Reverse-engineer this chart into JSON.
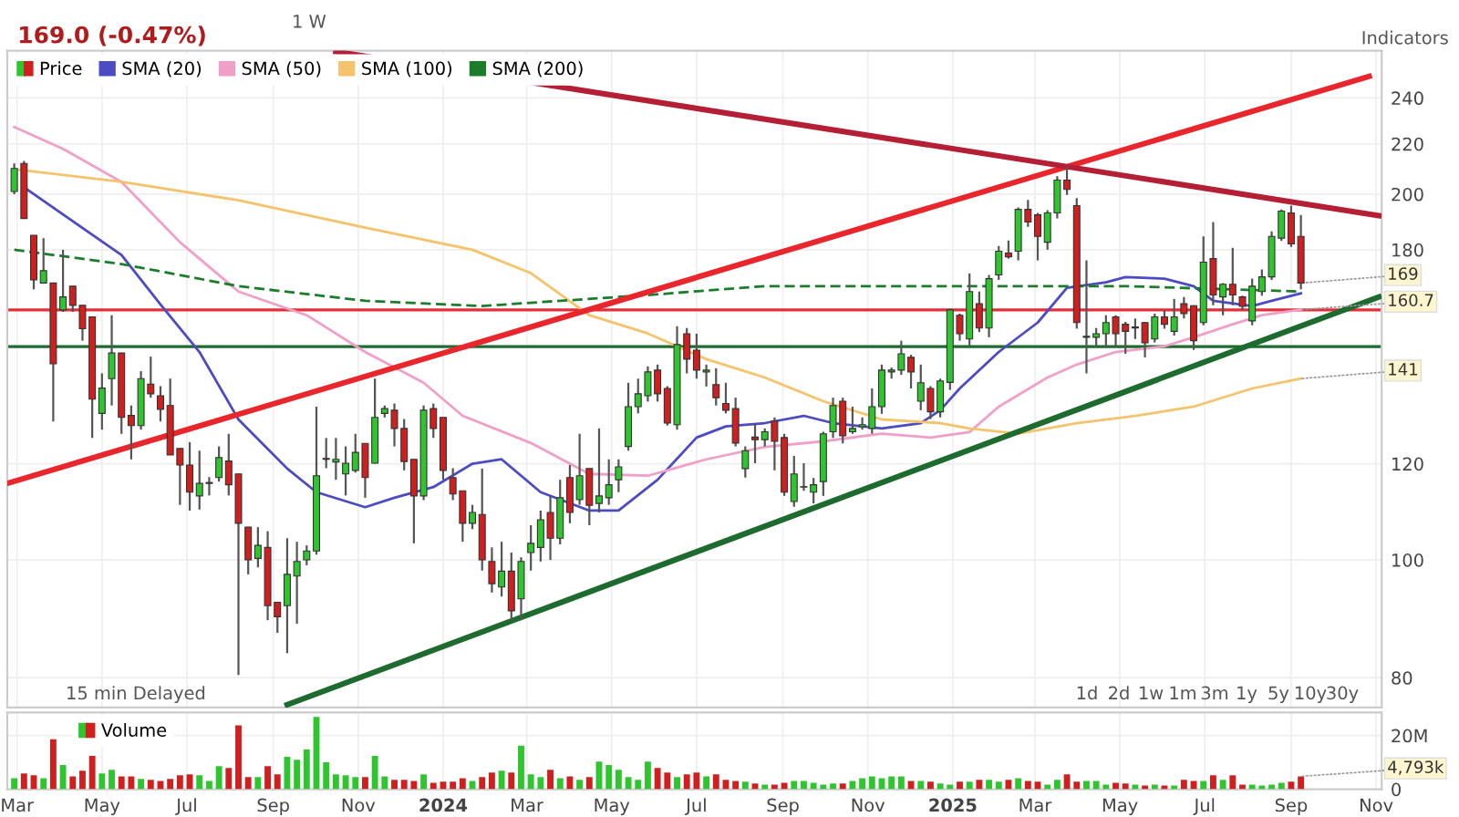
{
  "chart_data": [
    {
      "type": "candlestick",
      "title": "169.0 (-0.47%)",
      "x": [
        "2023-02-27",
        "2023-03-06",
        "2023-03-13",
        "2023-03-20",
        "2023-03-27",
        "2023-04-03",
        "2023-04-10",
        "2023-04-17",
        "2023-04-24",
        "2023-05-01",
        "2023-05-08",
        "2023-05-15",
        "2023-05-22",
        "2023-05-29",
        "2023-06-05",
        "2023-06-12",
        "2023-06-19",
        "2023-06-26",
        "2023-07-03",
        "2023-07-10",
        "2023-07-17",
        "2023-07-24",
        "2023-07-31",
        "2023-08-07",
        "2023-08-14",
        "2023-08-21",
        "2023-08-28",
        "2023-09-04",
        "2023-09-11",
        "2023-09-18",
        "2023-09-25",
        "2023-10-02",
        "2023-10-09",
        "2023-10-16",
        "2023-10-23",
        "2023-10-30",
        "2023-11-06",
        "2023-11-13",
        "2023-11-20",
        "2023-11-27",
        "2023-12-04",
        "2023-12-11",
        "2023-12-18",
        "2023-12-25",
        "2024-01-01",
        "2024-01-08",
        "2024-01-15",
        "2024-01-22",
        "2024-01-29",
        "2024-02-05",
        "2024-02-12",
        "2024-02-19",
        "2024-02-26",
        "2024-03-04",
        "2024-03-11",
        "2024-03-18",
        "2024-03-25",
        "2024-04-01",
        "2024-04-08",
        "2024-04-15",
        "2024-04-22",
        "2024-04-29",
        "2024-05-06",
        "2024-05-13",
        "2024-05-20",
        "2024-05-27",
        "2024-06-03",
        "2024-06-10",
        "2024-06-17",
        "2024-06-24",
        "2024-07-01",
        "2024-07-08",
        "2024-07-15",
        "2024-07-22",
        "2024-07-29",
        "2024-08-05",
        "2024-08-12",
        "2024-08-19",
        "2024-08-26",
        "2024-09-02",
        "2024-09-09",
        "2024-09-16",
        "2024-09-23",
        "2024-09-30",
        "2024-10-07",
        "2024-10-14",
        "2024-10-21",
        "2024-10-28",
        "2024-11-04",
        "2024-11-11",
        "2024-11-18",
        "2024-11-25",
        "2024-12-02",
        "2024-12-09",
        "2024-12-16",
        "2024-12-23",
        "2024-12-30",
        "2025-01-06",
        "2025-01-13",
        "2025-01-20",
        "2025-01-27",
        "2025-02-03",
        "2025-02-10",
        "2025-02-17",
        "2025-02-24",
        "2025-03-03",
        "2025-03-10",
        "2025-03-17",
        "2025-03-24",
        "2025-03-31",
        "2025-04-07",
        "2025-04-14",
        "2025-04-21",
        "2025-04-28",
        "2025-05-05",
        "2025-05-12",
        "2025-05-19",
        "2025-05-26",
        "2025-06-02",
        "2025-06-09",
        "2025-06-16",
        "2025-06-23",
        "2025-06-30",
        "2025-07-07",
        "2025-07-14",
        "2025-07-21",
        "2025-07-28",
        "2025-08-04",
        "2025-08-11",
        "2025-08-18",
        "2025-08-25",
        "2025-09-01",
        "2025-09-08"
      ],
      "series": [
        {
          "type": "candlestick",
          "name": "Price",
          "ohlc": [
            [
              201,
              212,
              200,
              210
            ],
            [
              212,
              213,
              191,
              191
            ],
            [
              185,
              185,
              167,
              170
            ],
            [
              169,
              184,
              169,
              173
            ],
            [
              169,
              169,
              130,
              145
            ],
            [
              160.6,
              180,
              160,
              164.6
            ],
            [
              168,
              168,
              160,
              162
            ],
            [
              162,
              162,
              151.5,
              155
            ],
            [
              158.5,
              158.5,
              126,
              135.6
            ],
            [
              132,
              142.4,
              128,
              138.5
            ],
            [
              141,
              159,
              134,
              148
            ],
            [
              148,
              148,
              127,
              131
            ],
            [
              131.5,
              134,
              121,
              129
            ],
            [
              129,
              143,
              128,
              141
            ],
            [
              139.5,
              147,
              136,
              137
            ],
            [
              136.5,
              139,
              130,
              133
            ],
            [
              134,
              141,
              122,
              122
            ],
            [
              123.5,
              123.5,
              111,
              119.7
            ],
            [
              119.7,
              125,
              109.8,
              113.7
            ],
            [
              112.9,
              123,
              110,
              115.6
            ],
            [
              115.6,
              117,
              113,
              115.8
            ],
            [
              116.9,
              124,
              116,
              121.4
            ],
            [
              120.6,
              127,
              113,
              115.3
            ],
            [
              117.7,
              117.7,
              80.4,
              107.2
            ],
            [
              106.4,
              106.4,
              97.3,
              100
            ],
            [
              100.3,
              106.4,
              98.6,
              102.8
            ],
            [
              102.4,
              105.6,
              89.2,
              91.7
            ],
            [
              92.3,
              92.3,
              87.1,
              89.8
            ],
            [
              91.7,
              104.2,
              83.8,
              97.3
            ],
            [
              97,
              103.5,
              88.6,
              99.7
            ],
            [
              100,
              102.8,
              99,
              101.7
            ],
            [
              101.7,
              133.7,
              101,
              117.3
            ],
            [
              121,
              126,
              119,
              121.2
            ],
            [
              120.4,
              126,
              116.4,
              121
            ],
            [
              117.7,
              124,
              113,
              120.1
            ],
            [
              118.5,
              127,
              118,
              122.6
            ],
            [
              124.7,
              124.7,
              112.5,
              116.9
            ],
            [
              120.1,
              141,
              120,
              131
            ],
            [
              132,
              134,
              131,
              133.2
            ],
            [
              132.8,
              134.5,
              124,
              128.3
            ],
            [
              128.3,
              130.6,
              118.5,
              120.5
            ],
            [
              121,
              121,
              103.2,
              112.9
            ],
            [
              112.9,
              134,
              112,
              132.8
            ],
            [
              133.2,
              134.5,
              126,
              128.3
            ],
            [
              131,
              131,
              116.4,
              118.5
            ],
            [
              116.9,
              119,
              112,
              113.3
            ],
            [
              114,
              114,
              103.5,
              107.2
            ],
            [
              107.2,
              111,
              106,
              109.4
            ],
            [
              109,
              118.9,
              98,
              100
            ],
            [
              99.7,
              102.4,
              94,
              95.6
            ],
            [
              95,
              103.5,
              93.3,
              97.9
            ],
            [
              97.9,
              101.4,
              89.2,
              90.8
            ],
            [
              92.9,
              100.5,
              89.2,
              99.7
            ],
            [
              101.4,
              106.8,
              98,
              103.2
            ],
            [
              102.4,
              109.8,
              99.7,
              107.9
            ],
            [
              109.4,
              112.9,
              100,
              104.2
            ],
            [
              104.2,
              116.4,
              103,
              112.5
            ],
            [
              116.9,
              119.7,
              107.2,
              109.4
            ],
            [
              112.1,
              127,
              111,
              117.3
            ],
            [
              118.9,
              118.9,
              106.8,
              110.9
            ],
            [
              111.3,
              128.3,
              109.4,
              112.9
            ],
            [
              112.5,
              121,
              111,
              115.3
            ],
            [
              116.4,
              121,
              113.7,
              119.3
            ],
            [
              124,
              139.9,
              123,
              133.7
            ],
            [
              133.7,
              141,
              132,
              137
            ],
            [
              136.5,
              144.3,
              135,
              142.8
            ],
            [
              143.3,
              144.8,
              135,
              137
            ],
            [
              138.4,
              139,
              129,
              129.6
            ],
            [
              129.2,
              155.7,
              128,
              150.4
            ],
            [
              153.5,
              155.2,
              142.4,
              146.3
            ],
            [
              148.8,
              153.5,
              141,
              143.3
            ],
            [
              142.8,
              144.8,
              138.9,
              143.3
            ],
            [
              139.4,
              143.8,
              134,
              136
            ],
            [
              134.5,
              139.9,
              132,
              132.8
            ],
            [
              133.2,
              136,
              124,
              124.8
            ],
            [
              118.9,
              124,
              116.9,
              123
            ],
            [
              126.2,
              129.6,
              120.1,
              125.6
            ],
            [
              125.6,
              128.3,
              124,
              127.5
            ],
            [
              130.1,
              131,
              118.5,
              125.2
            ],
            [
              126.1,
              127,
              112.9,
              113.7
            ],
            [
              111.7,
              121.8,
              110.6,
              117.7
            ],
            [
              114.8,
              120.1,
              114,
              114.9
            ],
            [
              113.7,
              116.8,
              111.3,
              115.3
            ],
            [
              116,
              127.5,
              112.9,
              127
            ],
            [
              127.5,
              136,
              126,
              134
            ],
            [
              135.1,
              136,
              124.7,
              126.5
            ],
            [
              127.5,
              133.7,
              127,
              128.3
            ],
            [
              128.7,
              131,
              128,
              129.2
            ],
            [
              128.3,
              138.4,
              127,
              133.7
            ],
            [
              133.7,
              144.8,
              131.9,
              143.3
            ],
            [
              142.8,
              144,
              141,
              143.3
            ],
            [
              143.3,
              151.5,
              142,
              147.8
            ],
            [
              146.8,
              147.5,
              138.4,
              142.8
            ],
            [
              135.1,
              144.8,
              132.8,
              139.9
            ],
            [
              138.4,
              139,
              130.6,
              132.4
            ],
            [
              132.4,
              141,
              131,
              140.4
            ],
            [
              140,
              161,
              138,
              160.6
            ],
            [
              159,
              159.5,
              151.5,
              153.5
            ],
            [
              152,
              172.1,
              150,
              166.3
            ],
            [
              162.5,
              166.3,
              154,
              155.2
            ],
            [
              155.2,
              171.6,
              152.5,
              170.4
            ],
            [
              171.6,
              181.3,
              170,
              179.5
            ],
            [
              178.9,
              183.2,
              177,
              177.6
            ],
            [
              179.5,
              195,
              176.4,
              194.3
            ],
            [
              194.3,
              197.8,
              188,
              189.7
            ],
            [
              192.3,
              193,
              176.4,
              184.6
            ],
            [
              182.6,
              194,
              180,
              193
            ],
            [
              193,
              206.9,
              191,
              205.4
            ],
            [
              205.4,
              210.4,
              199.7,
              201.8
            ],
            [
              195.7,
              198.5,
              155,
              156.8
            ],
            [
              152.5,
              176.4,
              142.4,
              152.8
            ],
            [
              152.5,
              155.2,
              149.8,
              153.5
            ],
            [
              153.5,
              159,
              149.8,
              156.8
            ],
            [
              158.5,
              159,
              149.8,
              153.5
            ],
            [
              156.3,
              157,
              147.8,
              154.2
            ],
            [
              155.2,
              158,
              152,
              155.5
            ],
            [
              156.8,
              157,
              146.8,
              150.9
            ],
            [
              152,
              159.5,
              151,
              158.5
            ],
            [
              158.5,
              160.6,
              155,
              156.3
            ],
            [
              154.2,
              164,
              153,
              158.5
            ],
            [
              162.5,
              164.6,
              158,
              159.5
            ],
            [
              161.9,
              162,
              148.9,
              151.5
            ],
            [
              156.8,
              184.6,
              156,
              175.8
            ],
            [
              177,
              189.7,
              162,
              165.2
            ],
            [
              164.6,
              169,
              159,
              168.6
            ],
            [
              168.6,
              180.7,
              162,
              165.2
            ],
            [
              164.6,
              165,
              160.6,
              161.7
            ],
            [
              157.3,
              170.4,
              156,
              168
            ],
            [
              166.3,
              173.4,
              165,
              171
            ],
            [
              171,
              186.4,
              170,
              184.6
            ],
            [
              184,
              194.3,
              183,
              193.7
            ],
            [
              193,
              195.7,
              181,
              182
            ],
            [
              184.6,
              192.3,
              167,
              169
            ]
          ],
          "colors": [
            "#2fc52f",
            "#d01f1f",
            "#d01f1f",
            "#2fc52f",
            "#d01f1f",
            "#2fc52f",
            "#d01f1f",
            "#d01f1f",
            "#d01f1f",
            "#2fc52f",
            "#2fc52f",
            "#d01f1f",
            "#d01f1f",
            "#2fc52f",
            "#d01f1f",
            "#d01f1f",
            "#d01f1f",
            "#d01f1f",
            "#d01f1f",
            "#2fc52f",
            "#2fc52f",
            "#2fc52f",
            "#d01f1f",
            "#d01f1f",
            "#d01f1f",
            "#2fc52f",
            "#d01f1f",
            "#d01f1f",
            "#2fc52f",
            "#2fc52f",
            "#2fc52f",
            "#2fc52f",
            "#2fc52f",
            "#2fc52f",
            "#2fc52f",
            "#2fc52f",
            "#d01f1f",
            "#2fc52f",
            "#2fc52f",
            "#d01f1f",
            "#d01f1f",
            "#d01f1f",
            "#2fc52f",
            "#d01f1f",
            "#d01f1f",
            "#d01f1f",
            "#d01f1f",
            "#2fc52f",
            "#d01f1f",
            "#d01f1f",
            "#2fc52f",
            "#d01f1f",
            "#2fc52f",
            "#2fc52f",
            "#2fc52f",
            "#d01f1f",
            "#2fc52f",
            "#d01f1f",
            "#2fc52f",
            "#d01f1f",
            "#2fc52f",
            "#2fc52f",
            "#2fc52f",
            "#2fc52f",
            "#2fc52f",
            "#2fc52f",
            "#d01f1f",
            "#d01f1f",
            "#2fc52f",
            "#d01f1f",
            "#d01f1f",
            "#2fc52f",
            "#d01f1f",
            "#d01f1f",
            "#d01f1f",
            "#2fc52f",
            "#d01f1f",
            "#2fc52f",
            "#d01f1f",
            "#d01f1f",
            "#2fc52f",
            "#2fc52f",
            "#2fc52f",
            "#2fc52f",
            "#2fc52f",
            "#d01f1f",
            "#2fc52f",
            "#2fc52f",
            "#2fc52f",
            "#2fc52f",
            "#2fc52f",
            "#2fc52f",
            "#d01f1f",
            "#2fc52f",
            "#d01f1f",
            "#2fc52f",
            "#2fc52f",
            "#d01f1f",
            "#2fc52f",
            "#d01f1f",
            "#2fc52f",
            "#2fc52f",
            "#d01f1f",
            "#2fc52f",
            "#d01f1f",
            "#d01f1f",
            "#2fc52f",
            "#2fc52f",
            "#d01f1f",
            "#d01f1f",
            "#2fc52f",
            "#2fc52f",
            "#2fc52f",
            "#d01f1f",
            "#d01f1f",
            "#2fc52f",
            "#d01f1f",
            "#2fc52f",
            "#d01f1f",
            "#2fc52f",
            "#d01f1f",
            "#d01f1f",
            "#2fc52f",
            "#d01f1f",
            "#2fc52f",
            "#d01f1f",
            "#d01f1f",
            "#2fc52f",
            "#2fc52f",
            "#2fc52f",
            "#2fc52f",
            "#d01f1f",
            "#d01f1f"
          ]
        },
        {
          "type": "line",
          "name": "SMA (20)",
          "color": "#4b4bc4",
          "x": [
            "2023-03-06",
            "2023-05-15",
            "2023-06-12",
            "2023-07-10",
            "2023-08-07",
            "2023-09-11",
            "2023-10-02",
            "2023-11-06",
            "2023-11-27",
            "2023-12-25",
            "2024-01-22",
            "2024-02-12",
            "2024-03-11",
            "2024-04-15",
            "2024-05-06",
            "2024-06-03",
            "2024-07-01",
            "2024-07-22",
            "2024-08-19",
            "2024-09-16",
            "2024-10-07",
            "2024-11-11",
            "2024-12-09",
            "2024-12-23",
            "2025-01-06",
            "2025-02-03",
            "2025-03-03",
            "2025-03-24",
            "2025-04-21",
            "2025-05-05",
            "2025-06-02",
            "2025-06-23",
            "2025-07-07",
            "2025-08-04",
            "2025-08-18",
            "2025-09-08"
          ],
          "values": [
            202.6,
            178.2,
            162.3,
            148.3,
            130.5,
            118.9,
            113.7,
            110.5,
            112.5,
            114.8,
            120,
            121,
            113.7,
            109.8,
            109.8,
            116.4,
            126.1,
            128.8,
            129.6,
            131.4,
            129.6,
            128.3,
            129.6,
            132.8,
            138.4,
            148.3,
            156.8,
            167.5,
            169.2,
            170.9,
            170.4,
            168,
            163.4,
            161.8,
            163.4,
            165.7
          ]
        },
        {
          "type": "line",
          "name": "SMA (50)",
          "color": "#f0a0c8",
          "x": [
            "2023-02-27",
            "2023-04-03",
            "2023-05-15",
            "2023-06-26",
            "2023-08-07",
            "2023-09-25",
            "2023-11-06",
            "2023-12-18",
            "2024-01-15",
            "2024-03-04",
            "2024-04-15",
            "2024-05-27",
            "2024-07-08",
            "2024-08-19",
            "2024-09-30",
            "2024-11-11",
            "2024-12-16",
            "2025-01-13",
            "2025-02-03",
            "2025-03-10",
            "2025-03-31",
            "2025-04-28",
            "2025-06-02",
            "2025-06-23",
            "2025-07-21",
            "2025-08-11",
            "2025-09-08"
          ],
          "values": [
            227.1,
            217.9,
            204.7,
            182.6,
            166.3,
            159,
            148.3,
            139.9,
            131.4,
            124.8,
            117.7,
            117.3,
            121,
            123.9,
            125.2,
            127,
            126.1,
            127.4,
            133.7,
            141.3,
            144.8,
            148.3,
            149.9,
            152.5,
            156.3,
            159,
            160.7
          ]
        },
        {
          "type": "line",
          "name": "SMA (100)",
          "color": "#f5c36b",
          "x": [
            "2023-02-27",
            "2023-05-15",
            "2023-08-07",
            "2023-11-06",
            "2024-01-22",
            "2024-03-04",
            "2024-04-15",
            "2024-05-27",
            "2024-07-08",
            "2024-08-19",
            "2024-09-30",
            "2024-11-11",
            "2024-12-23",
            "2025-01-13",
            "2025-02-17",
            "2025-03-31",
            "2025-05-12",
            "2025-06-23",
            "2025-08-04",
            "2025-09-08"
          ],
          "values": [
            209.7,
            204.7,
            197.7,
            187.7,
            180,
            172.2,
            159,
            153.6,
            146.3,
            141.3,
            135.1,
            130.5,
            129.6,
            128.3,
            127,
            129.6,
            131.4,
            133.7,
            138.4,
            141
          ]
        },
        {
          "type": "line",
          "name": "SMA (200)",
          "color": "#1b7d2a",
          "line_style": "dashed",
          "x": [
            "2023-02-27",
            "2023-05-15",
            "2023-08-07",
            "2023-11-06",
            "2024-01-29",
            "2024-05-27",
            "2024-08-19",
            "2024-12-23",
            "2025-05-05",
            "2025-09-08"
          ],
          "values": [
            180,
            175.2,
            168,
            163.4,
            161.8,
            165.2,
            168,
            168,
            168,
            166.3
          ]
        },
        {
          "type": "line",
          "color": "#e8262b",
          "x": [
            "2023-02-22",
            "2025-10-27"
          ],
          "values": [
            115.6,
            250
          ]
        },
        {
          "type": "line",
          "color": "#b51f36",
          "x": [
            "2023-10-16",
            "2025-11-03"
          ],
          "values": [
            262,
            192
          ]
        },
        {
          "type": "line",
          "color": "#1e6b30",
          "x": [
            "2023-09-11",
            "2025-11-03"
          ],
          "values": [
            76,
            164.6
          ]
        }
      ],
      "ref_lines": [
        {
          "axis": "y",
          "value": 160.6,
          "color": "#e0303a"
        },
        {
          "axis": "y",
          "value": 149.8,
          "color": "#1e6b30"
        }
      ],
      "log": true,
      "ylim": [
        75.6,
        262.5
      ],
      "yticks": [
        80,
        100,
        120,
        180,
        200,
        220,
        240
      ],
      "xlim": [
        "2023-02-22",
        "2025-11-05"
      ],
      "xticks": [
        {
          "value": "2023-03-01",
          "label": null
        },
        {
          "value": "2023-05-01",
          "label": null
        },
        {
          "value": "2023-07-01",
          "label": null
        },
        {
          "value": "2023-09-01",
          "label": null
        },
        {
          "value": "2023-11-01",
          "label": null
        },
        {
          "value": "2024-01-01",
          "label": null
        },
        {
          "value": "2024-03-01",
          "label": null
        },
        {
          "value": "2024-05-01",
          "label": null
        },
        {
          "value": "2024-07-01",
          "label": null
        },
        {
          "value": "2024-09-01",
          "label": null
        },
        {
          "value": "2024-11-01",
          "label": null
        },
        {
          "value": "2025-01-01",
          "label": null
        },
        {
          "value": "2025-03-01",
          "label": null
        },
        {
          "value": "2025-05-01",
          "label": null
        },
        {
          "value": "2025-07-01",
          "label": null
        },
        {
          "value": "2025-09-01",
          "label": null
        },
        {
          "value": "2025-11-01",
          "label": null
        }
      ],
      "tick_labels": "y",
      "grid": true,
      "legend": "top left",
      "annotations": [
        "1 W",
        "Indicators",
        "15 min Delayed",
        "1d",
        "2d",
        "1w",
        "1m",
        "3m",
        "1y",
        "5y",
        "10y",
        "30y",
        {
          "text": "169",
          "x": "2025-09-08",
          "y": 169
        },
        {
          "text": "160.7",
          "x": "2025-09-08",
          "y": 160.7
        },
        {
          "text": "141",
          "x": "2025-09-08",
          "y": 141
        }
      ]
    },
    {
      "type": "bar",
      "x": [
        "2023-02-27",
        "2023-03-06",
        "2023-03-13",
        "2023-03-20",
        "2023-03-27",
        "2023-04-03",
        "2023-04-10",
        "2023-04-17",
        "2023-04-24",
        "2023-05-01",
        "2023-05-08",
        "2023-05-15",
        "2023-05-22",
        "2023-05-29",
        "2023-06-05",
        "2023-06-12",
        "2023-06-19",
        "2023-06-26",
        "2023-07-03",
        "2023-07-10",
        "2023-07-17",
        "2023-07-24",
        "2023-07-31",
        "2023-08-07",
        "2023-08-14",
        "2023-08-21",
        "2023-08-28",
        "2023-09-04",
        "2023-09-11",
        "2023-09-18",
        "2023-09-25",
        "2023-10-02",
        "2023-10-09",
        "2023-10-16",
        "2023-10-23",
        "2023-10-30",
        "2023-11-06",
        "2023-11-13",
        "2023-11-20",
        "2023-11-27",
        "2023-12-04",
        "2023-12-11",
        "2023-12-18",
        "2023-12-25",
        "2024-01-01",
        "2024-01-08",
        "2024-01-15",
        "2024-01-22",
        "2024-01-29",
        "2024-02-05",
        "2024-02-12",
        "2024-02-19",
        "2024-02-26",
        "2024-03-04",
        "2024-03-11",
        "2024-03-18",
        "2024-03-25",
        "2024-04-01",
        "2024-04-08",
        "2024-04-15",
        "2024-04-22",
        "2024-04-29",
        "2024-05-06",
        "2024-05-13",
        "2024-05-20",
        "2024-05-27",
        "2024-06-03",
        "2024-06-10",
        "2024-06-17",
        "2024-06-24",
        "2024-07-01",
        "2024-07-08",
        "2024-07-15",
        "2024-07-22",
        "2024-07-29",
        "2024-08-05",
        "2024-08-12",
        "2024-08-19",
        "2024-08-26",
        "2024-09-02",
        "2024-09-09",
        "2024-09-16",
        "2024-09-23",
        "2024-09-30",
        "2024-10-07",
        "2024-10-14",
        "2024-10-21",
        "2024-10-28",
        "2024-11-04",
        "2024-11-11",
        "2024-11-18",
        "2024-11-25",
        "2024-12-02",
        "2024-12-09",
        "2024-12-16",
        "2024-12-23",
        "2024-12-30",
        "2025-01-06",
        "2025-01-13",
        "2025-01-20",
        "2025-01-27",
        "2025-02-03",
        "2025-02-10",
        "2025-02-17",
        "2025-02-24",
        "2025-03-03",
        "2025-03-10",
        "2025-03-17",
        "2025-03-24",
        "2025-03-31",
        "2025-04-07",
        "2025-04-14",
        "2025-04-21",
        "2025-04-28",
        "2025-05-05",
        "2025-05-12",
        "2025-05-19",
        "2025-05-26",
        "2025-06-02",
        "2025-06-09",
        "2025-06-16",
        "2025-06-23",
        "2025-06-30",
        "2025-07-07",
        "2025-07-14",
        "2025-07-21",
        "2025-07-28",
        "2025-08-04",
        "2025-08-11",
        "2025-08-18",
        "2025-08-25",
        "2025-09-01",
        "2025-09-08"
      ],
      "series": [
        {
          "name": "Volume",
          "values": [
            4.1,
            5.9,
            5.2,
            4.1,
            18.6,
            9,
            4.8,
            6.9,
            12.4,
            5.9,
            7.2,
            4.8,
            4.8,
            3.8,
            3.5,
            3.1,
            3.8,
            5.2,
            5.5,
            5.2,
            3.1,
            8.6,
            7.9,
            23.8,
            4.5,
            4.5,
            8.6,
            5.5,
            12.1,
            11,
            14.8,
            26.9,
            10,
            5.5,
            5.2,
            4.5,
            4.5,
            12.4,
            4.8,
            3.5,
            3.5,
            3.1,
            5.5,
            2.4,
            2.8,
            2.8,
            4.1,
            3.1,
            4.5,
            6.2,
            6.9,
            6.2,
            16.2,
            5.5,
            4.5,
            7.2,
            4.1,
            4.8,
            3.5,
            4.5,
            10.3,
            9,
            7.2,
            4.5,
            3.5,
            10.3,
            7.9,
            6.2,
            4.5,
            5.5,
            6.2,
            4.8,
            5.5,
            3.5,
            3.1,
            2.8,
            2.1,
            1.7,
            1.7,
            2.4,
            3.1,
            3.1,
            2.4,
            1.7,
            2.1,
            2.1,
            3.1,
            4.1,
            4.8,
            4.1,
            4.8,
            4.8,
            3.1,
            3.1,
            2.8,
            2.1,
            1.7,
            2.8,
            2.8,
            3.5,
            3.5,
            2.8,
            3.5,
            4.1,
            3.1,
            2.8,
            1.7,
            3.5,
            5.5,
            2.8,
            3.1,
            3.1,
            1.7,
            2.4,
            2.1,
            1.7,
            1.4,
            1.7,
            1.4,
            1.4,
            3.5,
            3.1,
            3.1,
            5.2,
            3.5,
            5.2,
            1.7,
            1.7,
            1.4,
            1.7,
            2.4,
            2.8,
            4.793
          ],
          "colors": [
            "#2fc52f",
            "#d01f1f",
            "#d01f1f",
            "#2fc52f",
            "#d01f1f",
            "#2fc52f",
            "#d01f1f",
            "#d01f1f",
            "#d01f1f",
            "#2fc52f",
            "#2fc52f",
            "#d01f1f",
            "#d01f1f",
            "#2fc52f",
            "#d01f1f",
            "#d01f1f",
            "#d01f1f",
            "#d01f1f",
            "#d01f1f",
            "#2fc52f",
            "#2fc52f",
            "#2fc52f",
            "#d01f1f",
            "#d01f1f",
            "#d01f1f",
            "#2fc52f",
            "#d01f1f",
            "#d01f1f",
            "#2fc52f",
            "#2fc52f",
            "#2fc52f",
            "#2fc52f",
            "#2fc52f",
            "#2fc52f",
            "#2fc52f",
            "#2fc52f",
            "#d01f1f",
            "#2fc52f",
            "#2fc52f",
            "#d01f1f",
            "#d01f1f",
            "#d01f1f",
            "#2fc52f",
            "#d01f1f",
            "#d01f1f",
            "#d01f1f",
            "#d01f1f",
            "#2fc52f",
            "#d01f1f",
            "#d01f1f",
            "#2fc52f",
            "#d01f1f",
            "#2fc52f",
            "#2fc52f",
            "#2fc52f",
            "#d01f1f",
            "#2fc52f",
            "#d01f1f",
            "#2fc52f",
            "#d01f1f",
            "#2fc52f",
            "#2fc52f",
            "#2fc52f",
            "#2fc52f",
            "#2fc52f",
            "#2fc52f",
            "#d01f1f",
            "#d01f1f",
            "#2fc52f",
            "#d01f1f",
            "#d01f1f",
            "#2fc52f",
            "#d01f1f",
            "#d01f1f",
            "#d01f1f",
            "#2fc52f",
            "#d01f1f",
            "#2fc52f",
            "#d01f1f",
            "#d01f1f",
            "#2fc52f",
            "#2fc52f",
            "#2fc52f",
            "#2fc52f",
            "#2fc52f",
            "#d01f1f",
            "#2fc52f",
            "#2fc52f",
            "#2fc52f",
            "#2fc52f",
            "#2fc52f",
            "#2fc52f",
            "#d01f1f",
            "#2fc52f",
            "#d01f1f",
            "#2fc52f",
            "#2fc52f",
            "#d01f1f",
            "#2fc52f",
            "#d01f1f",
            "#2fc52f",
            "#2fc52f",
            "#d01f1f",
            "#2fc52f",
            "#d01f1f",
            "#d01f1f",
            "#2fc52f",
            "#2fc52f",
            "#d01f1f",
            "#d01f1f",
            "#2fc52f",
            "#2fc52f",
            "#2fc52f",
            "#d01f1f",
            "#d01f1f",
            "#2fc52f",
            "#d01f1f",
            "#2fc52f",
            "#d01f1f",
            "#2fc52f",
            "#d01f1f",
            "#d01f1f",
            "#2fc52f",
            "#d01f1f",
            "#2fc52f",
            "#d01f1f",
            "#d01f1f",
            "#2fc52f",
            "#2fc52f",
            "#2fc52f",
            "#2fc52f",
            "#d01f1f",
            "#d01f1f"
          ]
        }
      ],
      "ylim": [
        0,
        28.6
      ],
      "yticks": [
        0,
        {
          "value": 20,
          "label": "20M"
        }
      ],
      "xlim": [
        "2023-02-22",
        "2025-11-05"
      ],
      "xticks": [
        {
          "value": "2023-03-01",
          "label": "Mar"
        },
        {
          "value": "2023-05-01",
          "label": "May"
        },
        {
          "value": "2023-07-01",
          "label": "Jul"
        },
        {
          "value": "2023-09-01",
          "label": "Sep"
        },
        {
          "value": "2023-11-01",
          "label": "Nov"
        },
        {
          "value": "2024-01-01",
          "label": "2024"
        },
        {
          "value": "2024-03-01",
          "label": "Mar"
        },
        {
          "value": "2024-05-01",
          "label": "May"
        },
        {
          "value": "2024-07-01",
          "label": "Jul"
        },
        {
          "value": "2024-09-01",
          "label": "Sep"
        },
        {
          "value": "2024-11-01",
          "label": "Nov"
        },
        {
          "value": "2025-01-01",
          "label": "2025"
        },
        {
          "value": "2025-03-01",
          "label": "Mar"
        },
        {
          "value": "2025-05-01",
          "label": "May"
        },
        {
          "value": "2025-07-01",
          "label": "Jul"
        },
        {
          "value": "2025-09-01",
          "label": "Sep"
        },
        {
          "value": "2025-11-01",
          "label": "Nov"
        }
      ],
      "grid": true,
      "legend": "top left",
      "annotations": [
        {
          "text": "4,793k",
          "x": "2025-09-08",
          "y": 4.793
        }
      ]
    }
  ]
}
